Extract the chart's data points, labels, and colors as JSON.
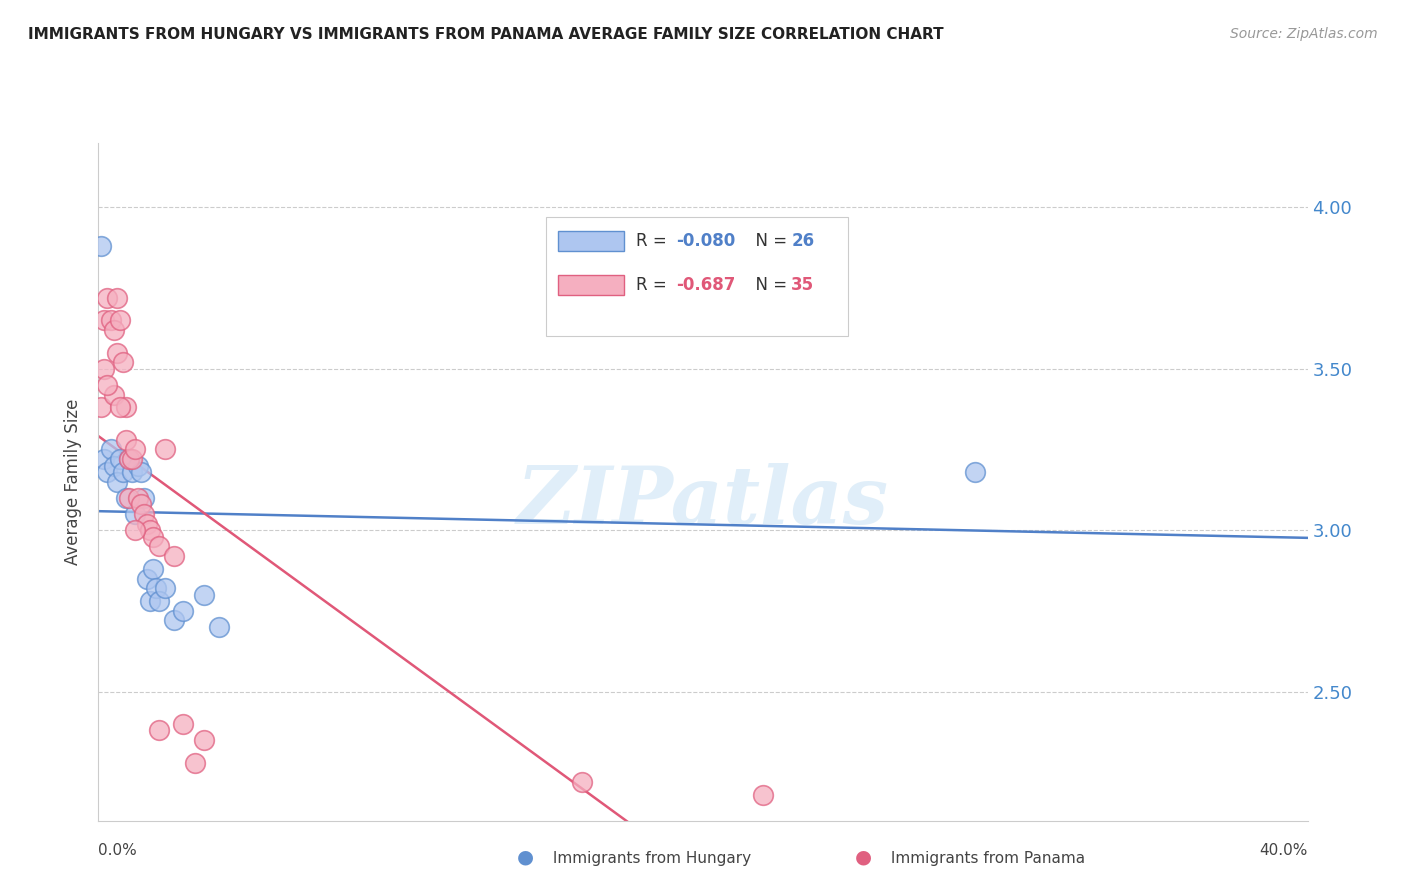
{
  "title": "IMMIGRANTS FROM HUNGARY VS IMMIGRANTS FROM PANAMA AVERAGE FAMILY SIZE CORRELATION CHART",
  "source": "Source: ZipAtlas.com",
  "ylabel": "Average Family Size",
  "yticks": [
    2.5,
    3.0,
    3.5,
    4.0
  ],
  "xlim": [
    0.0,
    0.4
  ],
  "ylim": [
    2.1,
    4.2
  ],
  "hungary_color": "#aec6f0",
  "hungary_edge_color": "#6090d0",
  "hungary_line_color": "#5080c8",
  "panama_color": "#f5afc0",
  "panama_edge_color": "#e06080",
  "panama_line_color": "#e05878",
  "hungary_R": "-0.080",
  "hungary_N": "26",
  "panama_R": "-0.687",
  "panama_N": "35",
  "watermark": "ZIPatlas",
  "hungary_x": [
    0.001,
    0.002,
    0.003,
    0.004,
    0.005,
    0.006,
    0.007,
    0.008,
    0.009,
    0.01,
    0.011,
    0.012,
    0.013,
    0.014,
    0.015,
    0.016,
    0.017,
    0.018,
    0.019,
    0.02,
    0.022,
    0.025,
    0.028,
    0.035,
    0.04,
    0.29
  ],
  "hungary_y": [
    3.88,
    3.22,
    3.18,
    3.25,
    3.2,
    3.15,
    3.22,
    3.18,
    3.1,
    3.22,
    3.18,
    3.05,
    3.2,
    3.18,
    3.1,
    2.85,
    2.78,
    2.88,
    2.82,
    2.78,
    2.82,
    2.72,
    2.75,
    2.8,
    2.7,
    3.18
  ],
  "panama_x": [
    0.001,
    0.002,
    0.002,
    0.003,
    0.004,
    0.005,
    0.005,
    0.006,
    0.006,
    0.007,
    0.008,
    0.009,
    0.009,
    0.01,
    0.01,
    0.011,
    0.012,
    0.013,
    0.014,
    0.015,
    0.016,
    0.017,
    0.018,
    0.02,
    0.022,
    0.025,
    0.028,
    0.032,
    0.035,
    0.16,
    0.22,
    0.003,
    0.007,
    0.012,
    0.02
  ],
  "panama_y": [
    3.38,
    3.65,
    3.5,
    3.72,
    3.65,
    3.62,
    3.42,
    3.72,
    3.55,
    3.65,
    3.52,
    3.38,
    3.28,
    3.22,
    3.1,
    3.22,
    3.25,
    3.1,
    3.08,
    3.05,
    3.02,
    3.0,
    2.98,
    2.95,
    3.25,
    2.92,
    2.4,
    2.28,
    2.35,
    2.22,
    2.18,
    3.45,
    3.38,
    3.0,
    2.38
  ],
  "grid_color": "#cccccc",
  "bg_color": "#ffffff",
  "right_axis_color": "#4488cc",
  "xtick_positions": [
    0.0,
    0.05,
    0.1,
    0.15,
    0.2,
    0.25,
    0.3,
    0.35,
    0.4
  ]
}
